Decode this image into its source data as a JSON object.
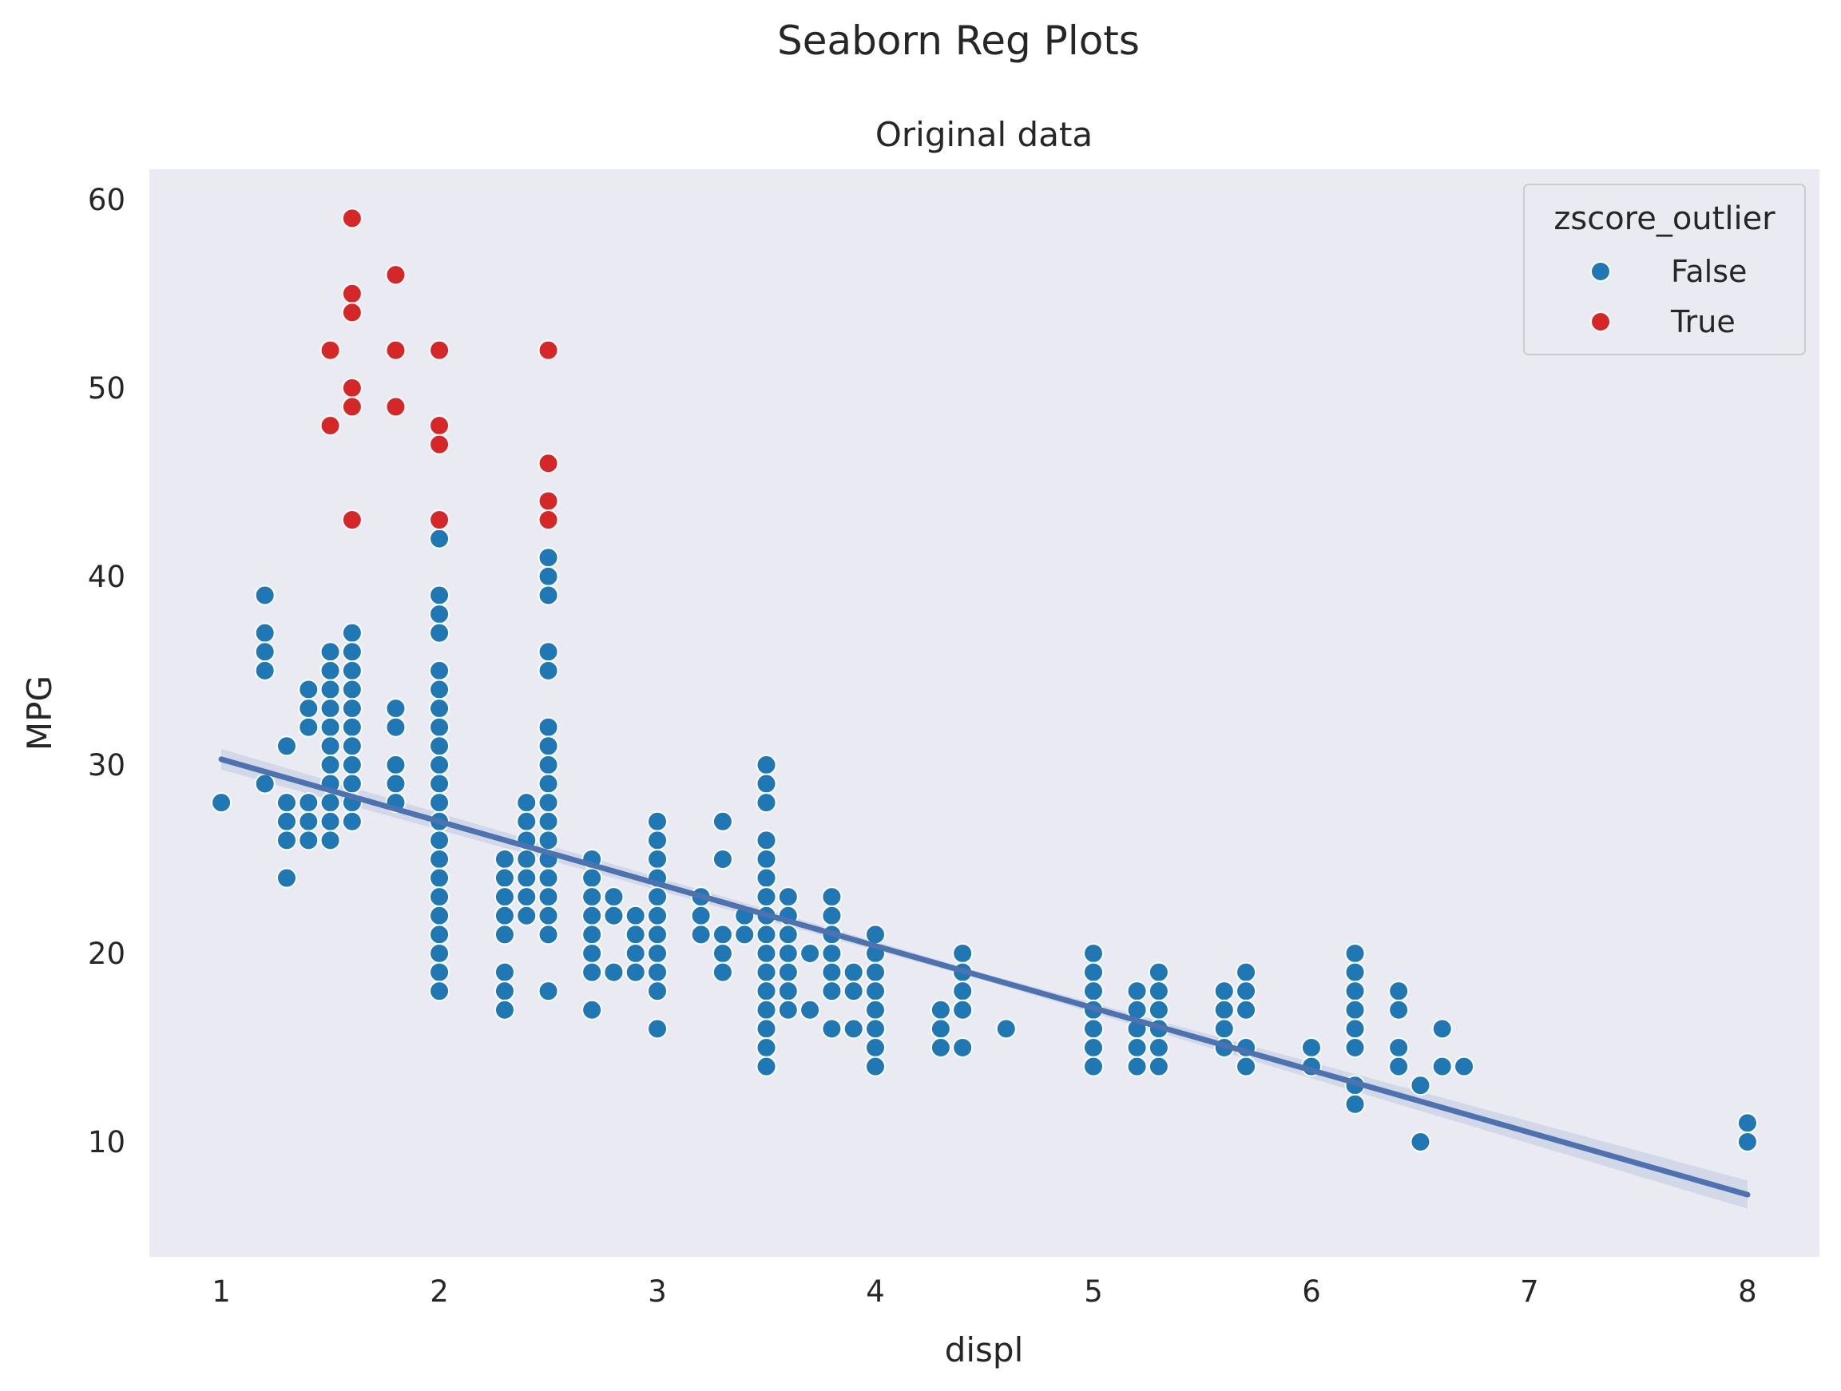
{
  "chart_data": {
    "type": "scatter",
    "suptitle": "Seaborn Reg Plots",
    "title": "Original data",
    "xlabel": "displ",
    "ylabel": "MPG",
    "xlim": [
      0.67,
      8.33
    ],
    "ylim": [
      3.9,
      61.6
    ],
    "xticks": [
      1,
      2,
      3,
      4,
      5,
      6,
      7,
      8
    ],
    "yticks": [
      10,
      20,
      30,
      40,
      50,
      60
    ],
    "grid": false,
    "legend": {
      "title": "zscore_outlier",
      "placement": "top-right",
      "entries": [
        {
          "label": "False",
          "color": "#1f77b4"
        },
        {
          "label": "True",
          "color": "#d62728"
        }
      ]
    },
    "colors": {
      "background": "#eaeaf2",
      "point_false": "#1f77b4",
      "point_true": "#d62728",
      "regression": "#4c72b0"
    },
    "regression": {
      "x": [
        1,
        8
      ],
      "y": [
        30.3,
        7.2
      ]
    },
    "points_false": [
      [
        1.0,
        28
      ],
      [
        1.2,
        39
      ],
      [
        1.2,
        37
      ],
      [
        1.2,
        36
      ],
      [
        1.2,
        35
      ],
      [
        1.2,
        29
      ],
      [
        1.3,
        31
      ],
      [
        1.3,
        28
      ],
      [
        1.3,
        27
      ],
      [
        1.3,
        26
      ],
      [
        1.3,
        24
      ],
      [
        1.4,
        34
      ],
      [
        1.4,
        33
      ],
      [
        1.4,
        32
      ],
      [
        1.4,
        28
      ],
      [
        1.4,
        27
      ],
      [
        1.4,
        26
      ],
      [
        1.5,
        36
      ],
      [
        1.5,
        35
      ],
      [
        1.5,
        34
      ],
      [
        1.5,
        33
      ],
      [
        1.5,
        32
      ],
      [
        1.5,
        31
      ],
      [
        1.5,
        30
      ],
      [
        1.5,
        29
      ],
      [
        1.5,
        28
      ],
      [
        1.5,
        27
      ],
      [
        1.5,
        26
      ],
      [
        1.6,
        37
      ],
      [
        1.6,
        36
      ],
      [
        1.6,
        35
      ],
      [
        1.6,
        34
      ],
      [
        1.6,
        33
      ],
      [
        1.6,
        32
      ],
      [
        1.6,
        31
      ],
      [
        1.6,
        30
      ],
      [
        1.6,
        29
      ],
      [
        1.6,
        28
      ],
      [
        1.6,
        27
      ],
      [
        1.8,
        33
      ],
      [
        1.8,
        32
      ],
      [
        1.8,
        30
      ],
      [
        1.8,
        29
      ],
      [
        1.8,
        28
      ],
      [
        2.0,
        42
      ],
      [
        2.0,
        39
      ],
      [
        2.0,
        38
      ],
      [
        2.0,
        37
      ],
      [
        2.0,
        35
      ],
      [
        2.0,
        34
      ],
      [
        2.0,
        33
      ],
      [
        2.0,
        32
      ],
      [
        2.0,
        31
      ],
      [
        2.0,
        30
      ],
      [
        2.0,
        29
      ],
      [
        2.0,
        28
      ],
      [
        2.0,
        27
      ],
      [
        2.0,
        26
      ],
      [
        2.0,
        25
      ],
      [
        2.0,
        24
      ],
      [
        2.0,
        23
      ],
      [
        2.0,
        22
      ],
      [
        2.0,
        21
      ],
      [
        2.0,
        20
      ],
      [
        2.0,
        19
      ],
      [
        2.0,
        18
      ],
      [
        2.3,
        25
      ],
      [
        2.3,
        24
      ],
      [
        2.3,
        23
      ],
      [
        2.3,
        22
      ],
      [
        2.3,
        21
      ],
      [
        2.3,
        19
      ],
      [
        2.3,
        18
      ],
      [
        2.3,
        17
      ],
      [
        2.4,
        28
      ],
      [
        2.4,
        27
      ],
      [
        2.4,
        26
      ],
      [
        2.4,
        25
      ],
      [
        2.4,
        24
      ],
      [
        2.4,
        23
      ],
      [
        2.4,
        22
      ],
      [
        2.5,
        41
      ],
      [
        2.5,
        40
      ],
      [
        2.5,
        39
      ],
      [
        2.5,
        36
      ],
      [
        2.5,
        35
      ],
      [
        2.5,
        32
      ],
      [
        2.5,
        31
      ],
      [
        2.5,
        30
      ],
      [
        2.5,
        29
      ],
      [
        2.5,
        28
      ],
      [
        2.5,
        27
      ],
      [
        2.5,
        26
      ],
      [
        2.5,
        25
      ],
      [
        2.5,
        24
      ],
      [
        2.5,
        23
      ],
      [
        2.5,
        22
      ],
      [
        2.5,
        21
      ],
      [
        2.5,
        18
      ],
      [
        2.7,
        25
      ],
      [
        2.7,
        24
      ],
      [
        2.7,
        23
      ],
      [
        2.7,
        22
      ],
      [
        2.7,
        21
      ],
      [
        2.7,
        20
      ],
      [
        2.7,
        19
      ],
      [
        2.7,
        17
      ],
      [
        2.8,
        23
      ],
      [
        2.8,
        22
      ],
      [
        2.8,
        19
      ],
      [
        2.9,
        22
      ],
      [
        2.9,
        21
      ],
      [
        2.9,
        20
      ],
      [
        2.9,
        19
      ],
      [
        3.0,
        27
      ],
      [
        3.0,
        26
      ],
      [
        3.0,
        25
      ],
      [
        3.0,
        24
      ],
      [
        3.0,
        23
      ],
      [
        3.0,
        22
      ],
      [
        3.0,
        21
      ],
      [
        3.0,
        20
      ],
      [
        3.0,
        19
      ],
      [
        3.0,
        18
      ],
      [
        3.0,
        16
      ],
      [
        3.2,
        23
      ],
      [
        3.2,
        22
      ],
      [
        3.2,
        21
      ],
      [
        3.3,
        27
      ],
      [
        3.3,
        25
      ],
      [
        3.3,
        21
      ],
      [
        3.3,
        20
      ],
      [
        3.3,
        19
      ],
      [
        3.4,
        22
      ],
      [
        3.4,
        21
      ],
      [
        3.5,
        30
      ],
      [
        3.5,
        29
      ],
      [
        3.5,
        28
      ],
      [
        3.5,
        26
      ],
      [
        3.5,
        25
      ],
      [
        3.5,
        24
      ],
      [
        3.5,
        23
      ],
      [
        3.5,
        22
      ],
      [
        3.5,
        21
      ],
      [
        3.5,
        20
      ],
      [
        3.5,
        19
      ],
      [
        3.5,
        18
      ],
      [
        3.5,
        17
      ],
      [
        3.5,
        16
      ],
      [
        3.5,
        15
      ],
      [
        3.5,
        14
      ],
      [
        3.6,
        23
      ],
      [
        3.6,
        22
      ],
      [
        3.6,
        21
      ],
      [
        3.6,
        20
      ],
      [
        3.6,
        19
      ],
      [
        3.6,
        18
      ],
      [
        3.6,
        17
      ],
      [
        3.7,
        20
      ],
      [
        3.7,
        17
      ],
      [
        3.8,
        23
      ],
      [
        3.8,
        22
      ],
      [
        3.8,
        21
      ],
      [
        3.8,
        20
      ],
      [
        3.8,
        19
      ],
      [
        3.8,
        18
      ],
      [
        3.8,
        16
      ],
      [
        3.9,
        19
      ],
      [
        3.9,
        18
      ],
      [
        3.9,
        16
      ],
      [
        4.0,
        21
      ],
      [
        4.0,
        20
      ],
      [
        4.0,
        19
      ],
      [
        4.0,
        18
      ],
      [
        4.0,
        17
      ],
      [
        4.0,
        16
      ],
      [
        4.0,
        15
      ],
      [
        4.0,
        14
      ],
      [
        4.3,
        17
      ],
      [
        4.3,
        16
      ],
      [
        4.3,
        15
      ],
      [
        4.4,
        20
      ],
      [
        4.4,
        19
      ],
      [
        4.4,
        18
      ],
      [
        4.4,
        17
      ],
      [
        4.4,
        15
      ],
      [
        4.6,
        16
      ],
      [
        5.0,
        20
      ],
      [
        5.0,
        19
      ],
      [
        5.0,
        18
      ],
      [
        5.0,
        17
      ],
      [
        5.0,
        16
      ],
      [
        5.0,
        15
      ],
      [
        5.0,
        14
      ],
      [
        5.2,
        18
      ],
      [
        5.2,
        17
      ],
      [
        5.2,
        16
      ],
      [
        5.2,
        15
      ],
      [
        5.2,
        14
      ],
      [
        5.3,
        19
      ],
      [
        5.3,
        18
      ],
      [
        5.3,
        17
      ],
      [
        5.3,
        16
      ],
      [
        5.3,
        15
      ],
      [
        5.3,
        14
      ],
      [
        5.6,
        18
      ],
      [
        5.6,
        17
      ],
      [
        5.6,
        16
      ],
      [
        5.6,
        15
      ],
      [
        5.7,
        19
      ],
      [
        5.7,
        18
      ],
      [
        5.7,
        17
      ],
      [
        5.7,
        15
      ],
      [
        5.7,
        14
      ],
      [
        6.0,
        15
      ],
      [
        6.0,
        14
      ],
      [
        6.2,
        20
      ],
      [
        6.2,
        19
      ],
      [
        6.2,
        18
      ],
      [
        6.2,
        17
      ],
      [
        6.2,
        16
      ],
      [
        6.2,
        15
      ],
      [
        6.2,
        13
      ],
      [
        6.2,
        12
      ],
      [
        6.4,
        18
      ],
      [
        6.4,
        17
      ],
      [
        6.4,
        15
      ],
      [
        6.4,
        14
      ],
      [
        6.5,
        13
      ],
      [
        6.5,
        10
      ],
      [
        6.6,
        16
      ],
      [
        6.6,
        14
      ],
      [
        6.7,
        14
      ],
      [
        8.0,
        11
      ],
      [
        8.0,
        10
      ]
    ],
    "points_true": [
      [
        1.5,
        52
      ],
      [
        1.5,
        48
      ],
      [
        1.6,
        59
      ],
      [
        1.6,
        55
      ],
      [
        1.6,
        54
      ],
      [
        1.6,
        50
      ],
      [
        1.6,
        49
      ],
      [
        1.6,
        43
      ],
      [
        1.8,
        56
      ],
      [
        1.8,
        52
      ],
      [
        1.8,
        49
      ],
      [
        2.0,
        52
      ],
      [
        2.0,
        48
      ],
      [
        2.0,
        47
      ],
      [
        2.0,
        43
      ],
      [
        2.5,
        52
      ],
      [
        2.5,
        46
      ],
      [
        2.5,
        44
      ],
      [
        2.5,
        43
      ]
    ]
  }
}
